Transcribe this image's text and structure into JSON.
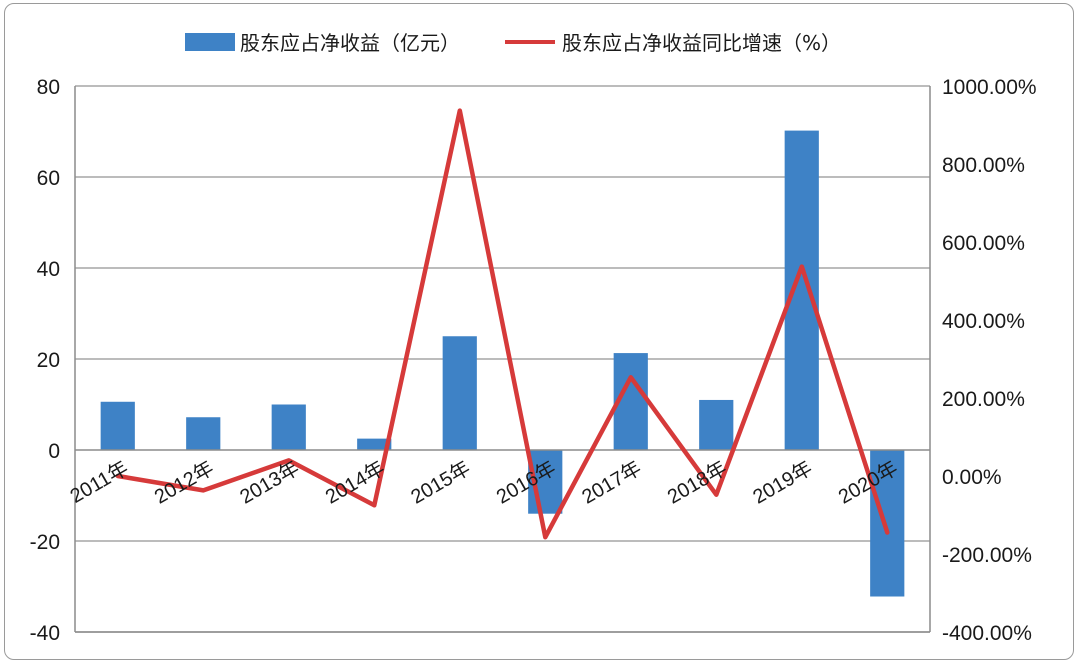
{
  "chart_data": {
    "type": "bar",
    "categories": [
      "2011年",
      "2012年",
      "2013年",
      "2014年",
      "2015年",
      "2016年",
      "2017年",
      "2018年",
      "2019年",
      "2020年"
    ],
    "series": [
      {
        "name": "股东应占净收益（亿元）",
        "type": "bar",
        "axis": "left",
        "color": "#3e82c6",
        "values": [
          10.6,
          7.2,
          10.0,
          2.5,
          25.0,
          -14.0,
          21.3,
          11.0,
          70.2,
          -32.2
        ]
      },
      {
        "name": "股东应占净收益同比增速（%）",
        "type": "line",
        "axis": "right",
        "color": "#d63a3a",
        "values": [
          0.0,
          -37.0,
          40.0,
          -75.0,
          937.0,
          -157.0,
          253.0,
          -48.0,
          537.0,
          -145.0
        ]
      }
    ],
    "y_left": {
      "lim": [
        -40,
        80
      ],
      "ticks": [
        "80",
        "60",
        "40",
        "20",
        "0",
        "-20",
        "-40"
      ]
    },
    "y_right": {
      "lim": [
        -400,
        1000
      ],
      "ticks": [
        "1000.00%",
        "800.00%",
        "600.00%",
        "400.00%",
        "200.00%",
        "0.00%",
        "-200.00%",
        "-400.00%"
      ]
    },
    "grid": true,
    "legend_position": "top"
  }
}
